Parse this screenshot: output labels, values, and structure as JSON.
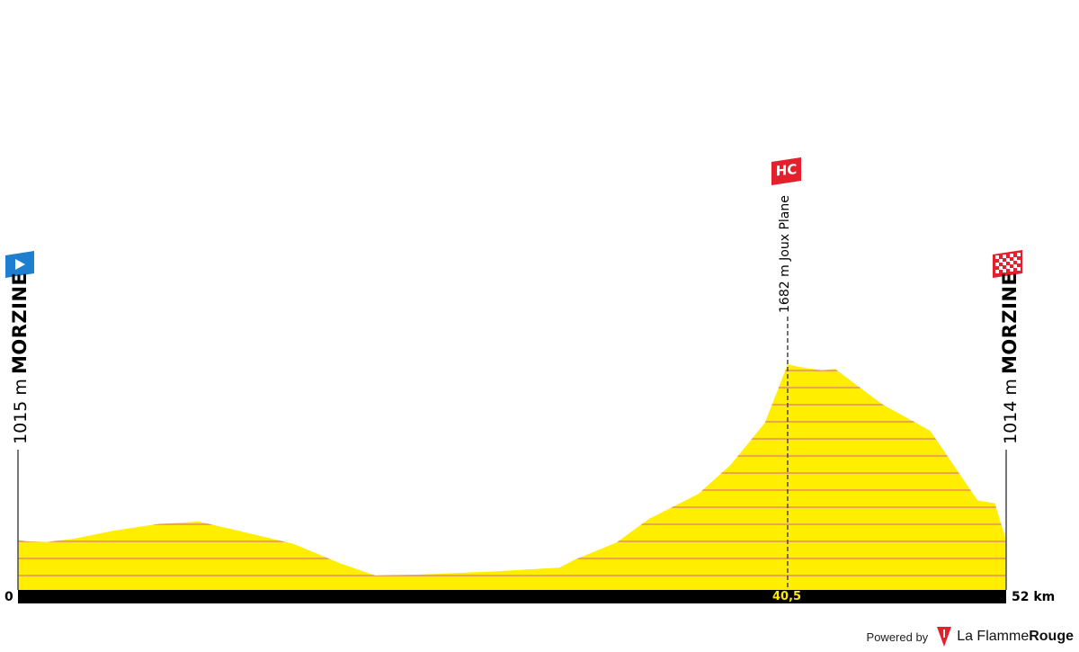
{
  "start": {
    "altitude": "1015 m",
    "town": "MORZINE"
  },
  "finish": {
    "altitude": "1014 m",
    "town": "MORZINE"
  },
  "climb": {
    "category": "HC",
    "label": "1682 m Joux Plane",
    "km": 40.5
  },
  "axis": {
    "start_label": "0",
    "end_label": "52 km",
    "summit_marker": "40,5"
  },
  "footer": {
    "powered_by": "Powered by",
    "brand_light": "La Flamme",
    "brand_bold": "Rouge"
  },
  "colors": {
    "profile_fill": "#ffee00",
    "grid_lines": "#e07a7a",
    "axis_bar": "#000000",
    "start_flag": "#1e7fd0",
    "climb_badge": "#e3202c",
    "finish_flag": "#e3202c"
  },
  "chart_data": {
    "type": "area",
    "x_unit": "km",
    "y_unit": "m",
    "distance_total_km": 52,
    "x": [
      0,
      0.4,
      1.5,
      3,
      5,
      7.3,
      9.5,
      11,
      14.5,
      17,
      18.8,
      21,
      25,
      28.5,
      29.3,
      31.5,
      33.2,
      35.8,
      37.5,
      39.3,
      40.5,
      41.3,
      42.3,
      43,
      45.5,
      48,
      50.5,
      51.4,
      52
    ],
    "y": [
      1015,
      1010,
      1007,
      1020,
      1050,
      1075,
      1085,
      1060,
      1000,
      925,
      880,
      883,
      895,
      910,
      940,
      1005,
      1095,
      1190,
      1300,
      1460,
      1682,
      1670,
      1660,
      1665,
      1530,
      1430,
      1165,
      1155,
      1014
    ],
    "ylim": [
      825,
      1700
    ]
  }
}
